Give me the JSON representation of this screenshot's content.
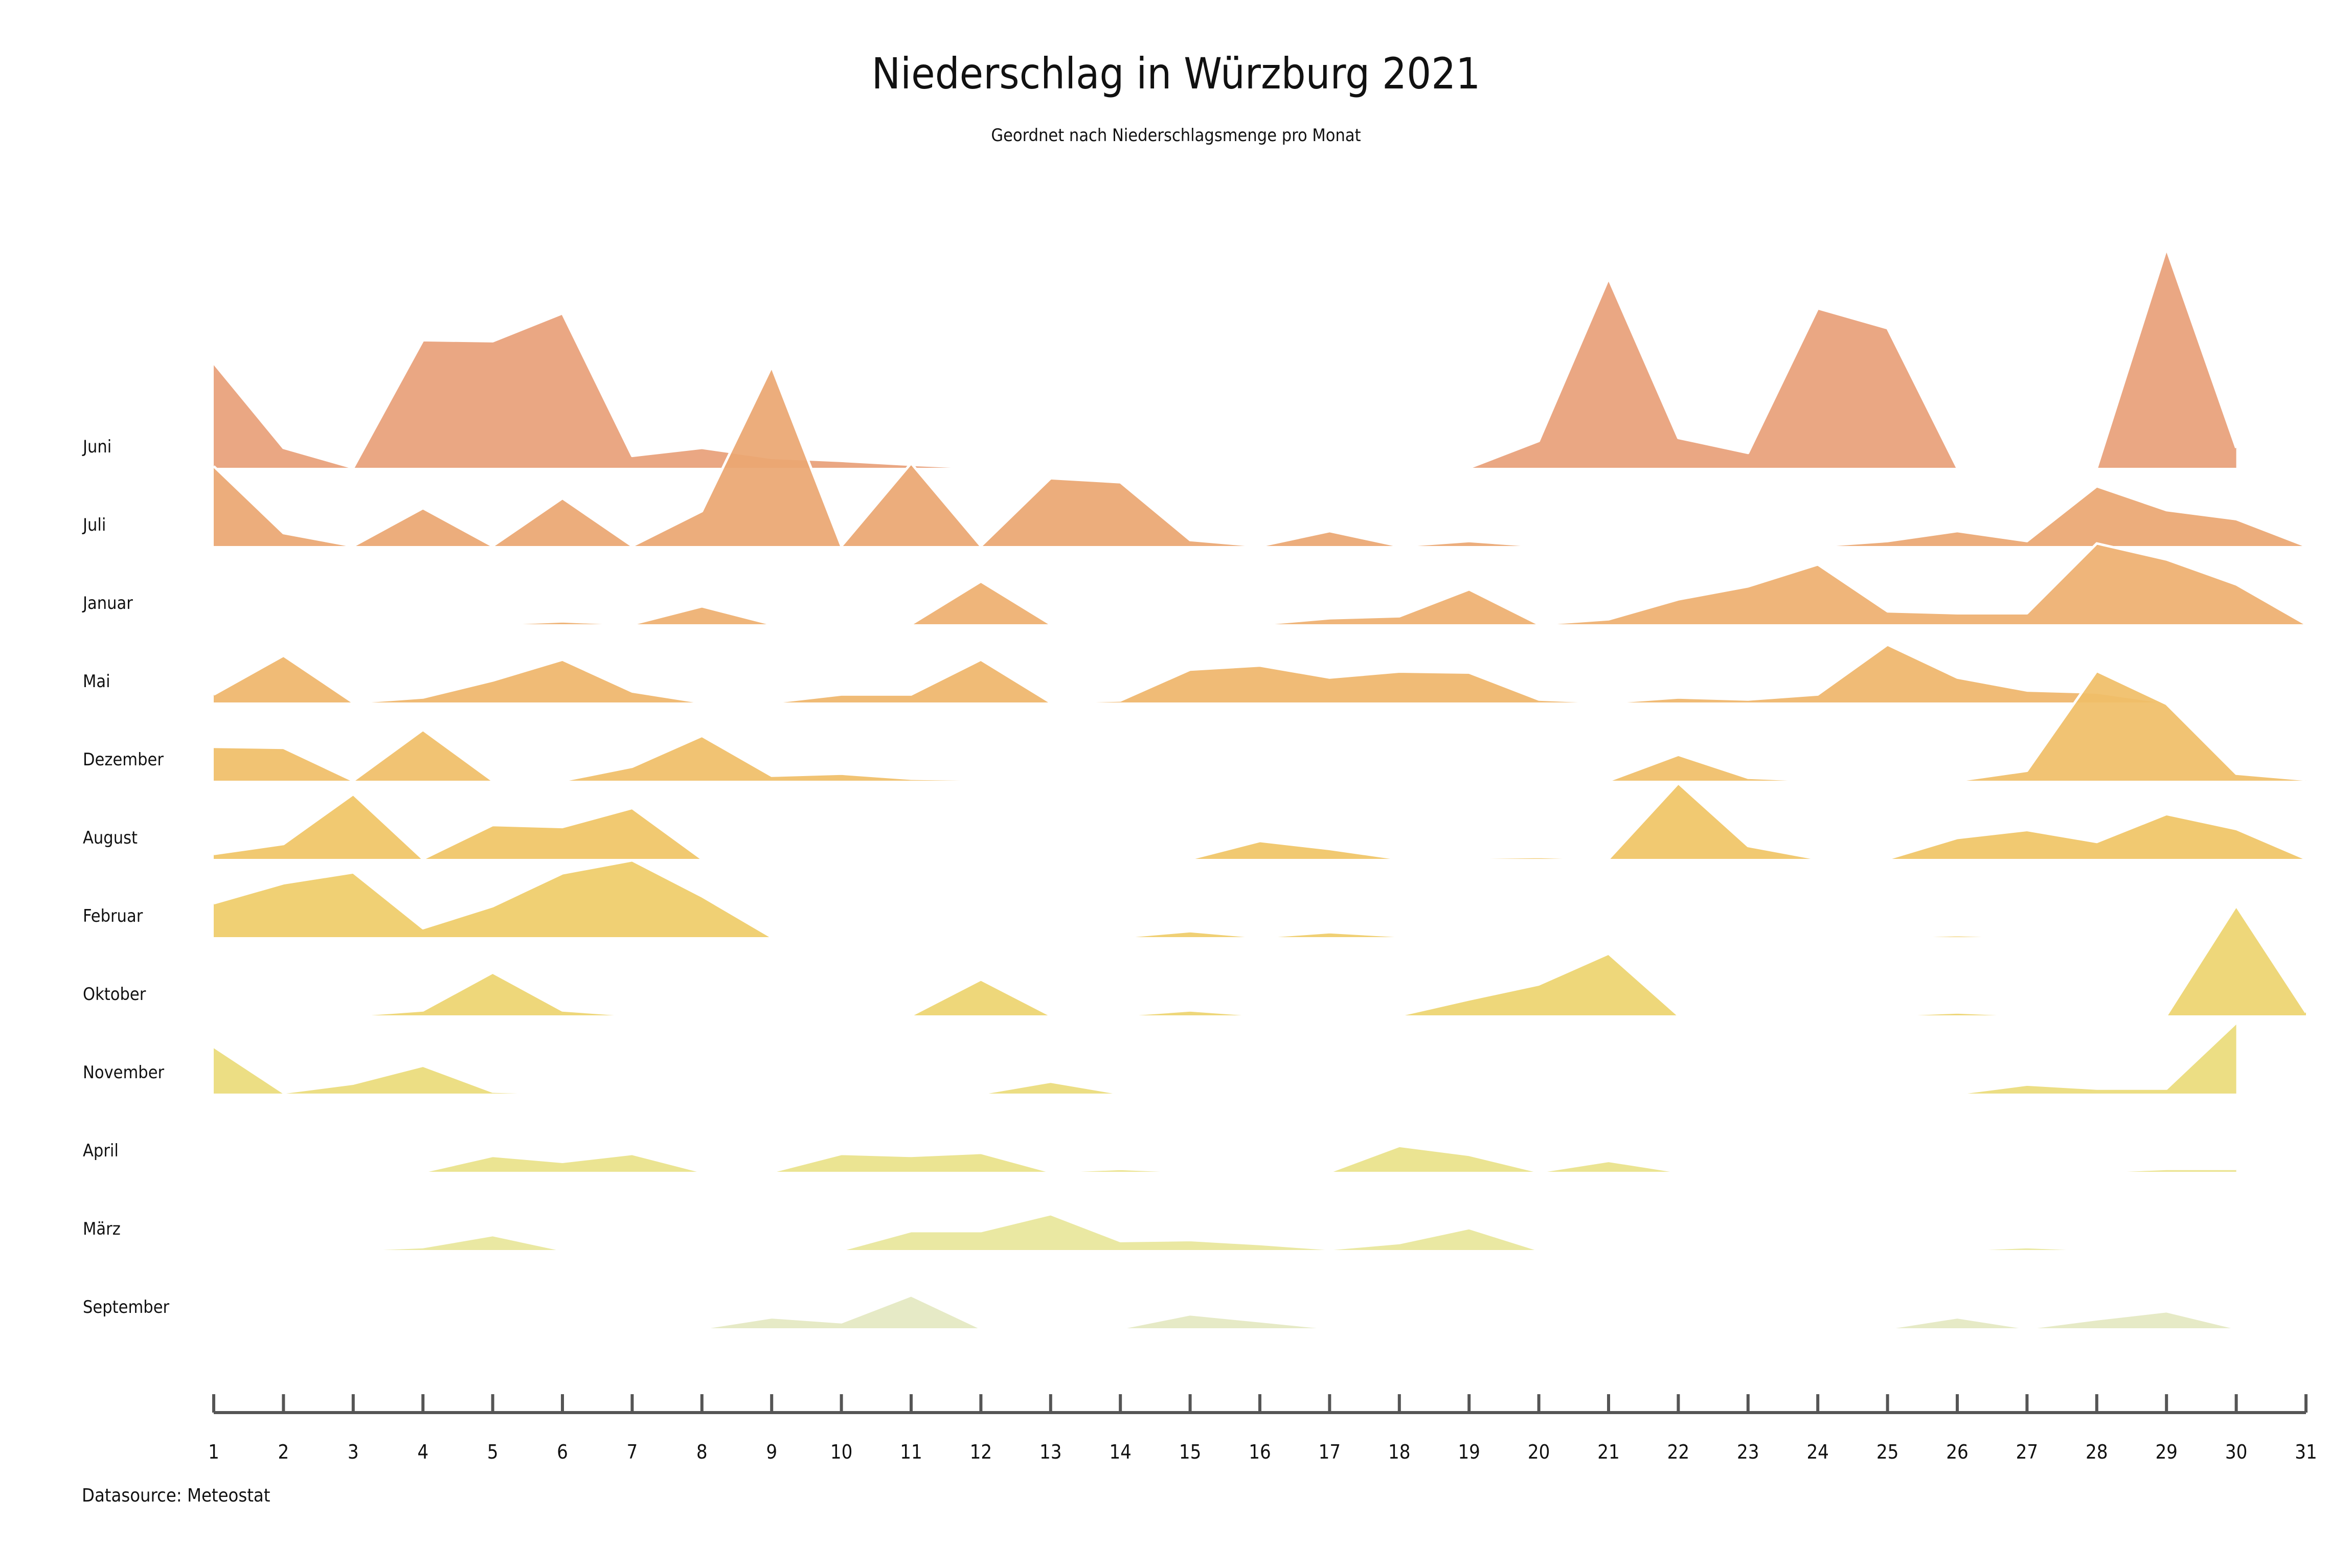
{
  "chart_data": {
    "type": "area",
    "title": "Niederschlag in Würzburg 2021",
    "subtitle": "Geordnet nach Niederschlagsmenge pro Monat",
    "source": "Datasource: Meteostat",
    "x": [
      1,
      2,
      3,
      4,
      5,
      6,
      7,
      8,
      9,
      10,
      11,
      12,
      13,
      14,
      15,
      16,
      17,
      18,
      19,
      20,
      21,
      22,
      23,
      24,
      25,
      26,
      27,
      28,
      29,
      30,
      31
    ],
    "xlim": [
      1,
      31
    ],
    "series": [
      {
        "name": "Juni",
        "color": "#E8A07A",
        "values": [
          10.5,
          2,
          0,
          12.8,
          12.7,
          15.5,
          1.2,
          2,
          1,
          0.7,
          0.3,
          0,
          0,
          0,
          0,
          0,
          0,
          0,
          0,
          2.7,
          19,
          3,
          1.5,
          16,
          14,
          0,
          0,
          0,
          22,
          2,
          null
        ]
      },
      {
        "name": "Juli",
        "color": "#EBA772",
        "values": [
          8,
          1.3,
          0,
          3.8,
          0,
          4.8,
          0,
          3.5,
          18,
          0,
          8.3,
          0,
          6.8,
          6.4,
          0.6,
          0,
          1.5,
          0,
          0.5,
          0,
          0,
          0,
          0,
          0,
          0.5,
          1.5,
          0.5,
          6,
          3.6,
          2.7,
          0
        ]
      },
      {
        "name": "Januar",
        "color": "#EEAF70",
        "values": [
          0,
          0,
          0,
          0,
          0,
          0.3,
          0,
          1.8,
          0,
          0,
          0,
          4.3,
          0,
          0,
          0,
          0,
          0.6,
          0.8,
          3.5,
          0,
          0.5,
          2.5,
          3.8,
          6,
          1.3,
          1.1,
          1.1,
          8.1,
          6.5,
          4,
          0
        ]
      },
      {
        "name": "Mai",
        "color": "#EFB66C",
        "values": [
          0.8,
          4.7,
          0,
          0.5,
          2.2,
          4.3,
          1.1,
          0,
          0,
          0.8,
          0.8,
          4.3,
          0,
          0.2,
          3.3,
          3.7,
          2.5,
          3.1,
          3,
          0.3,
          0,
          0.5,
          0.3,
          0.8,
          5.8,
          2.5,
          1.2,
          1,
          0,
          0,
          0
        ]
      },
      {
        "name": "Dezember",
        "color": "#F0BE68",
        "values": [
          3.4,
          3.3,
          0,
          5.1,
          0,
          0,
          1.4,
          4.5,
          0.5,
          0.7,
          0.2,
          0.1,
          0,
          0,
          0,
          0,
          0,
          0,
          0,
          0,
          0,
          2.6,
          0.3,
          0,
          0,
          0,
          1,
          11,
          7.7,
          0.7,
          0.1
        ]
      },
      {
        "name": "August",
        "color": "#F0C566",
        "values": [
          0.5,
          1.5,
          6.5,
          0,
          3.4,
          3.2,
          5.1,
          0,
          0,
          0,
          0,
          0,
          0,
          0,
          0,
          1.8,
          1,
          0,
          0.1,
          0.2,
          0,
          7.6,
          1.3,
          0,
          0,
          2.1,
          2.9,
          1.7,
          4.5,
          3,
          0
        ]
      },
      {
        "name": "Februar",
        "color": "#EFCC69",
        "values": [
          3.4,
          5.4,
          6.5,
          0.9,
          3.1,
          6.4,
          7.7,
          4.1,
          0,
          0,
          0,
          0,
          0,
          0,
          0.6,
          0,
          0.5,
          0.1,
          0,
          0,
          0,
          0,
          0,
          0,
          0,
          0.2,
          0,
          0,
          0,
          0,
          0
        ]
      },
      {
        "name": "Oktober",
        "color": "#EDD470",
        "values": [
          0,
          0,
          0,
          0.5,
          4.3,
          0.5,
          0,
          0,
          0,
          0,
          0,
          3.6,
          0,
          0,
          0.5,
          0,
          0,
          0,
          1.6,
          3.1,
          6.2,
          0,
          0,
          0,
          0,
          0.3,
          0,
          0,
          0,
          11,
          0.3
        ]
      },
      {
        "name": "November",
        "color": "#EBDB7B",
        "values": [
          4.7,
          0.1,
          1,
          2.8,
          0.2,
          0,
          0,
          0,
          0,
          0,
          0,
          0,
          1.2,
          0,
          0,
          0,
          0,
          0,
          0,
          0,
          0,
          0.1,
          0,
          0,
          0,
          0,
          0.9,
          0.5,
          0.5,
          7.1,
          null
        ]
      },
      {
        "name": "April",
        "color": "#E9E28A",
        "values": [
          0,
          0,
          0,
          0,
          1.6,
          1,
          1.8,
          0,
          0,
          1.8,
          1.6,
          1.9,
          0,
          0.3,
          0,
          0,
          0,
          2.6,
          1.7,
          0,
          1.1,
          0,
          0,
          0,
          0,
          0,
          0,
          0,
          0.3,
          0.3,
          null
        ]
      },
      {
        "name": "März",
        "color": "#E8E69B",
        "values": [
          0,
          0,
          0,
          0.3,
          1.5,
          0,
          0,
          0,
          0,
          0,
          1.9,
          1.9,
          3.6,
          0.9,
          1,
          0.6,
          0.1,
          0.7,
          2.2,
          0,
          0,
          0,
          0,
          0,
          0,
          0,
          0.3,
          0,
          0,
          0,
          0
        ]
      },
      {
        "name": "September",
        "color": "#E4E8C2",
        "values": [
          0,
          0,
          0,
          0,
          0,
          0,
          0,
          0,
          1.1,
          0.6,
          3.3,
          0,
          0,
          0,
          1.4,
          0.7,
          0,
          0,
          0,
          0,
          0,
          0,
          0,
          0,
          0,
          1.1,
          0,
          0.9,
          1.7,
          0,
          null
        ]
      }
    ],
    "grid": false,
    "legend": "none"
  }
}
